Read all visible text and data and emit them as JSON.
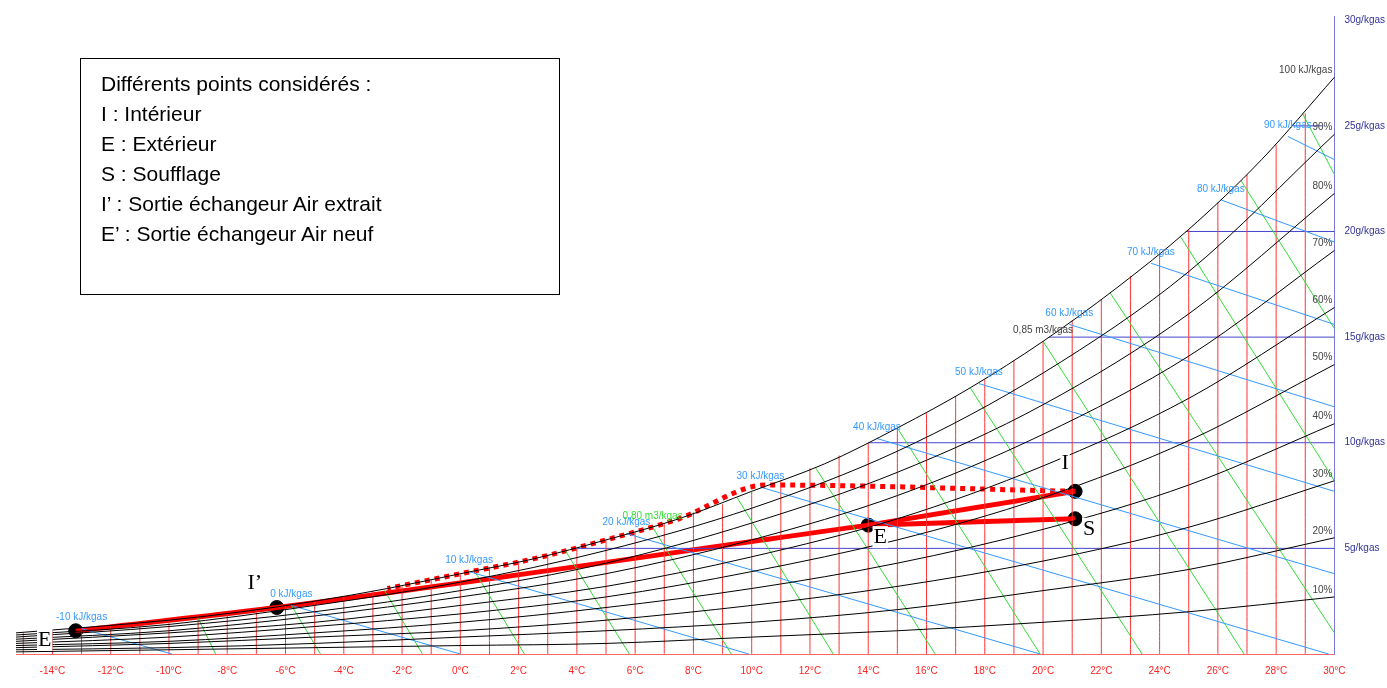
{
  "chart_data": {
    "type": "line",
    "legend": false,
    "marker": "none",
    "xlim": [
      -15.25,
      30
    ],
    "ylim": [
      0,
      30.2
    ],
    "xticks": [
      {
        "value": -14,
        "label": "-14°C"
      },
      {
        "value": -12,
        "label": "-12°C"
      },
      {
        "value": -10,
        "label": "-10°C"
      },
      {
        "value": -8,
        "label": "-8°C"
      },
      {
        "value": -6,
        "label": "-6°C"
      },
      {
        "value": -4,
        "label": "-4°C"
      },
      {
        "value": -2,
        "label": "-2°C"
      },
      {
        "value": 0,
        "label": "0°C"
      },
      {
        "value": 2,
        "label": "2°C"
      },
      {
        "value": 4,
        "label": "4°C"
      },
      {
        "value": 6,
        "label": "6°C"
      },
      {
        "value": 8,
        "label": "8°C"
      },
      {
        "value": 10,
        "label": "10°C"
      },
      {
        "value": 12,
        "label": "12°C"
      },
      {
        "value": 14,
        "label": "14°C"
      },
      {
        "value": 16,
        "label": "16°C"
      },
      {
        "value": 18,
        "label": "18°C"
      },
      {
        "value": 20,
        "label": "20°C"
      },
      {
        "value": 22,
        "label": "22°C"
      },
      {
        "value": 24,
        "label": "24°C"
      },
      {
        "value": 26,
        "label": "26°C"
      },
      {
        "value": 28,
        "label": "28°C"
      },
      {
        "value": 30,
        "label": "30°C"
      }
    ],
    "yticks": [
      {
        "value": 5,
        "label": "5g/kgas"
      },
      {
        "value": 10,
        "label": "10g/kgas"
      },
      {
        "value": 15,
        "label": "15g/kgas"
      },
      {
        "value": 20,
        "label": "20g/kgas"
      },
      {
        "value": 25,
        "label": "25g/kgas"
      },
      {
        "value": 30,
        "label": "30g/kgas"
      }
    ],
    "x": [
      -15.25,
      -10,
      -5,
      0,
      5,
      10,
      15,
      20,
      25,
      30
    ],
    "annotations": [
      "Différents points considérés :",
      "I : Intérieur",
      "E : Extérieur",
      "S : Soufflage",
      "I’ : Sortie échangeur Air extrait",
      "E’ : Sortie échangeur Air neuf",
      {
        "text": "E",
        "x": -13.2,
        "y": 1.1
      },
      {
        "text": "I’",
        "x": -6.3,
        "y": 2.2
      },
      {
        "text": "E",
        "x": 14.0,
        "y": 6.1
      },
      {
        "text": "I",
        "x": 21.1,
        "y": 7.7
      },
      {
        "text": "S",
        "x": 21.1,
        "y": 6.4
      },
      {
        "text": "-10 kJ/kgas",
        "x": -13,
        "y": 1.2
      },
      {
        "text": "0 kJ/kgas",
        "x": -5.8,
        "y": 2.3
      },
      {
        "text": "10 kJ/kgas",
        "x": 0.3,
        "y": 3.9
      },
      {
        "text": "20 kJ/kgas",
        "x": 5.7,
        "y": 5.7
      },
      {
        "text": "30 kJ/kgas",
        "x": 10.3,
        "y": 7.9
      },
      {
        "text": "40 kJ/kgas",
        "x": 14.3,
        "y": 10.2
      },
      {
        "text": "50 kJ/kgas",
        "x": 17.8,
        "y": 12.8
      },
      {
        "text": "60 kJ/kgas",
        "x": 20.9,
        "y": 15.6
      },
      {
        "text": "70 kJ/kgas",
        "x": 23.7,
        "y": 18.5
      },
      {
        "text": "80 kJ/kgas",
        "x": 26.1,
        "y": 21.5
      },
      {
        "text": "90 kJ/kgas",
        "x": 28.4,
        "y": 24.5
      },
      {
        "text": "100 kJ/kgas",
        "x": 30,
        "y": 27.3
      },
      {
        "text": "0,80 m3/kgas",
        "x": 6.6,
        "y": 6.0
      },
      {
        "text": "0,85 m3/kgas",
        "x": 20.0,
        "y": 14.8
      },
      {
        "text": "10%",
        "x": 30,
        "y": 2.7
      },
      {
        "text": "20%",
        "x": 30,
        "y": 5.5
      },
      {
        "text": "30%",
        "x": 30,
        "y": 8.2
      },
      {
        "text": "40%",
        "x": 30,
        "y": 10.9
      },
      {
        "text": "50%",
        "x": 30,
        "y": 13.7
      },
      {
        "text": "60%",
        "x": 30,
        "y": 16.4
      },
      {
        "text": "70%",
        "x": 30,
        "y": 19.1
      },
      {
        "text": "80%",
        "x": 30,
        "y": 21.8
      },
      {
        "text": "90%",
        "x": 30,
        "y": 24.6
      }
    ],
    "series": [
      {
        "color": "#000000",
        "x": [
          -15.25,
          -12.5,
          -10,
          -7.5,
          -5,
          -2.5,
          0,
          2.5,
          5,
          7.5,
          10,
          12.5,
          15,
          17.5,
          20,
          22.5,
          25,
          27.5,
          30
        ],
        "values": [
          1.0,
          1.3,
          1.6,
          2.0,
          2.5,
          3.1,
          3.8,
          4.5,
          5.4,
          6.4,
          7.7,
          9.0,
          10.7,
          12.6,
          14.8,
          17.3,
          20.1,
          23.4,
          27.3
        ]
      },
      {
        "color": "#000000",
        "values": [
          0.1,
          0.2,
          0.3,
          0.4,
          0.5,
          0.8,
          1.1,
          1.5,
          2.0,
          2.7
        ]
      },
      {
        "color": "#000000",
        "values": [
          0.2,
          0.3,
          0.5,
          0.8,
          1.1,
          1.5,
          2.1,
          3.0,
          4.0,
          5.5
        ]
      },
      {
        "color": "#000000",
        "values": [
          0.3,
          0.5,
          0.8,
          1.1,
          1.6,
          2.3,
          3.2,
          4.4,
          6.0,
          8.2
        ]
      },
      {
        "color": "#000000",
        "values": [
          0.4,
          0.6,
          1.0,
          1.5,
          2.2,
          3.1,
          4.3,
          5.9,
          8.0,
          10.9
        ]
      },
      {
        "color": "#000000",
        "values": [
          0.5,
          0.8,
          1.3,
          1.9,
          2.7,
          3.9,
          5.4,
          7.4,
          10.1,
          13.7
        ]
      },
      {
        "color": "#000000",
        "values": [
          0.6,
          1.0,
          1.5,
          2.3,
          3.2,
          4.6,
          6.4,
          8.9,
          12.1,
          16.4
        ]
      },
      {
        "color": "#000000",
        "values": [
          0.7,
          1.1,
          1.8,
          2.7,
          3.8,
          5.4,
          7.5,
          10.4,
          14.1,
          19.1
        ]
      },
      {
        "color": "#000000",
        "values": [
          0.8,
          1.3,
          2.0,
          3.0,
          4.3,
          6.2,
          8.6,
          11.8,
          16.1,
          21.8
        ]
      },
      {
        "color": "#000000",
        "values": [
          0.9,
          1.4,
          2.3,
          3.4,
          4.9,
          6.9,
          9.6,
          13.3,
          18.1,
          24.6
        ]
      },
      {
        "color": "#3399ff",
        "x": [
          -13,
          -9.9
        ],
        "values": [
          1.2,
          0
        ]
      },
      {
        "color": "#3399ff",
        "x": [
          -5.8,
          0
        ],
        "values": [
          2.3,
          0
        ]
      },
      {
        "color": "#3399ff",
        "x": [
          0.3,
          9.9
        ],
        "values": [
          3.9,
          0
        ]
      },
      {
        "color": "#3399ff",
        "x": [
          5.7,
          19.9
        ],
        "values": [
          5.7,
          0
        ]
      },
      {
        "color": "#3399ff",
        "x": [
          10.3,
          29.8
        ],
        "values": [
          7.9,
          0
        ]
      },
      {
        "color": "#3399ff",
        "x": [
          14.3,
          30
        ],
        "values": [
          10.2,
          3.8
        ]
      },
      {
        "color": "#3399ff",
        "x": [
          17.8,
          30
        ],
        "values": [
          12.8,
          7.7
        ]
      },
      {
        "color": "#3399ff",
        "x": [
          20.9,
          30
        ],
        "values": [
          15.6,
          11.7
        ]
      },
      {
        "color": "#3399ff",
        "x": [
          23.7,
          30
        ],
        "values": [
          18.5,
          15.6
        ]
      },
      {
        "color": "#3399ff",
        "x": [
          26.1,
          30
        ],
        "values": [
          21.5,
          19.5
        ]
      },
      {
        "color": "#3399ff",
        "x": [
          28.4,
          30
        ],
        "values": [
          24.5,
          23.4
        ]
      },
      {
        "color": "#33dd33",
        "x": [
          -9.0,
          -8.4
        ],
        "values": [
          1.7,
          0
        ]
      },
      {
        "color": "#33dd33",
        "x": [
          -5.8,
          -4.8
        ],
        "values": [
          2.3,
          0
        ]
      },
      {
        "color": "#33dd33",
        "x": [
          -2.6,
          -1.3
        ],
        "values": [
          3.0,
          0
        ]
      },
      {
        "color": "#33dd33",
        "x": [
          0.5,
          2.2
        ],
        "values": [
          3.9,
          0
        ]
      },
      {
        "color": "#33dd33",
        "x": [
          3.6,
          5.8
        ],
        "values": [
          4.9,
          0
        ]
      },
      {
        "color": "#33dd33",
        "x": [
          6.6,
          9.3
        ],
        "values": [
          6.0,
          0
        ]
      },
      {
        "color": "#33dd33",
        "x": [
          9.5,
          12.8
        ],
        "values": [
          7.4,
          0
        ]
      },
      {
        "color": "#33dd33",
        "x": [
          12.2,
          16.3
        ],
        "values": [
          8.8,
          0
        ]
      },
      {
        "color": "#33dd33",
        "x": [
          15.0,
          19.9
        ],
        "values": [
          10.7,
          0
        ]
      },
      {
        "color": "#33dd33",
        "x": [
          17.5,
          23.4
        ],
        "values": [
          12.6,
          0
        ]
      },
      {
        "color": "#33dd33",
        "x": [
          20.0,
          26.9
        ],
        "values": [
          14.8,
          0
        ]
      },
      {
        "color": "#33dd33",
        "x": [
          22.3,
          30
        ],
        "values": [
          17.1,
          1.0
        ]
      },
      {
        "color": "#33dd33",
        "x": [
          24.7,
          30
        ],
        "values": [
          19.8,
          8.2
        ]
      },
      {
        "color": "#33dd33",
        "x": [
          26.8,
          30
        ],
        "values": [
          22.4,
          15.4
        ]
      },
      {
        "color": "#33dd33",
        "x": [
          28.9,
          30
        ],
        "values": [
          25.6,
          22.7
        ]
      },
      {
        "color": "#ff3333",
        "x": [
          -15,
          -15
        ],
        "values": [
          0,
          1.0
        ]
      },
      {
        "color": "#ff3333",
        "x": [
          -14,
          -14
        ],
        "values": [
          0,
          1.1
        ]
      },
      {
        "color": "#ff3333",
        "x": [
          -13,
          -13
        ],
        "values": [
          0,
          1.2
        ]
      },
      {
        "color": "#ff3333",
        "x": [
          -12,
          -12
        ],
        "values": [
          0,
          1.3
        ]
      },
      {
        "color": "#ff3333",
        "x": [
          -11,
          -11
        ],
        "values": [
          0,
          1.5
        ]
      },
      {
        "color": "#ff3333",
        "x": [
          -10,
          -10
        ],
        "values": [
          0,
          1.6
        ]
      },
      {
        "color": "#ff3333",
        "x": [
          -9,
          -9
        ],
        "values": [
          0,
          1.8
        ]
      },
      {
        "color": "#ff3333",
        "x": [
          -8,
          -8
        ],
        "values": [
          0,
          1.9
        ]
      },
      {
        "color": "#ff3333",
        "x": [
          -7,
          -7
        ],
        "values": [
          0,
          2.1
        ]
      },
      {
        "color": "#ff3333",
        "x": [
          -6,
          -6
        ],
        "values": [
          0,
          2.3
        ]
      },
      {
        "color": "#ff3333",
        "x": [
          -5,
          -5
        ],
        "values": [
          0,
          2.5
        ]
      },
      {
        "color": "#ff3333",
        "x": [
          -4,
          -4
        ],
        "values": [
          0,
          2.7
        ]
      },
      {
        "color": "#ff3333",
        "x": [
          -3,
          -3
        ],
        "values": [
          0,
          3.0
        ]
      },
      {
        "color": "#ff3333",
        "x": [
          -2,
          -2
        ],
        "values": [
          0,
          3.2
        ]
      },
      {
        "color": "#ff3333",
        "x": [
          -1,
          -1
        ],
        "values": [
          0,
          3.5
        ]
      },
      {
        "color": "#ff3333",
        "x": [
          0,
          0
        ],
        "values": [
          0,
          3.8
        ]
      },
      {
        "color": "#ff3333",
        "x": [
          1,
          1
        ],
        "values": [
          0,
          4.1
        ]
      },
      {
        "color": "#ff3333",
        "x": [
          2,
          2
        ],
        "values": [
          0,
          4.4
        ]
      },
      {
        "color": "#ff3333",
        "x": [
          3,
          3
        ],
        "values": [
          0,
          4.7
        ]
      },
      {
        "color": "#ff3333",
        "x": [
          4,
          4
        ],
        "values": [
          0,
          5.0
        ]
      },
      {
        "color": "#ff3333",
        "x": [
          5,
          5
        ],
        "values": [
          0,
          5.4
        ]
      },
      {
        "color": "#ff3333",
        "x": [
          6,
          6
        ],
        "values": [
          0,
          5.8
        ]
      },
      {
        "color": "#ff3333",
        "x": [
          7,
          7
        ],
        "values": [
          0,
          6.2
        ]
      },
      {
        "color": "#ff3333",
        "x": [
          8,
          8
        ],
        "values": [
          0,
          6.7
        ]
      },
      {
        "color": "#ff3333",
        "x": [
          9,
          9
        ],
        "values": [
          0,
          7.1
        ]
      },
      {
        "color": "#ff3333",
        "x": [
          10,
          10
        ],
        "values": [
          0,
          7.7
        ]
      },
      {
        "color": "#ff3333",
        "x": [
          11,
          11
        ],
        "values": [
          0,
          8.2
        ]
      },
      {
        "color": "#ff3333",
        "x": [
          12,
          12
        ],
        "values": [
          0,
          8.8
        ]
      },
      {
        "color": "#ff3333",
        "x": [
          13,
          13
        ],
        "values": [
          0,
          9.4
        ]
      },
      {
        "color": "#ff3333",
        "x": [
          14,
          14
        ],
        "values": [
          0,
          10.0
        ]
      },
      {
        "color": "#ff3333",
        "x": [
          15,
          15
        ],
        "values": [
          0,
          10.7
        ]
      },
      {
        "color": "#ff3333",
        "x": [
          16,
          16
        ],
        "values": [
          0,
          11.4
        ]
      },
      {
        "color": "#ff3333",
        "x": [
          17,
          17
        ],
        "values": [
          0,
          12.2
        ]
      },
      {
        "color": "#ff3333",
        "x": [
          18,
          18
        ],
        "values": [
          0,
          13.0
        ]
      },
      {
        "color": "#ff3333",
        "x": [
          19,
          19
        ],
        "values": [
          0,
          13.9
        ]
      },
      {
        "color": "#ff3333",
        "x": [
          20,
          20
        ],
        "values": [
          0,
          14.8
        ]
      },
      {
        "color": "#ff3333",
        "x": [
          21,
          21
        ],
        "values": [
          0,
          15.8
        ]
      },
      {
        "color": "#ff3333",
        "x": [
          22,
          22
        ],
        "values": [
          0,
          16.8
        ]
      },
      {
        "color": "#ff3333",
        "x": [
          23,
          23
        ],
        "values": [
          0,
          17.9
        ]
      },
      {
        "color": "#ff3333",
        "x": [
          24,
          24
        ],
        "values": [
          0,
          19.0
        ]
      },
      {
        "color": "#ff3333",
        "x": [
          25,
          25
        ],
        "values": [
          0,
          20.1
        ]
      },
      {
        "color": "#ff3333",
        "x": [
          26,
          26
        ],
        "values": [
          0,
          21.4
        ]
      },
      {
        "color": "#ff3333",
        "x": [
          27,
          27
        ],
        "values": [
          0,
          22.7
        ]
      },
      {
        "color": "#ff3333",
        "x": [
          28,
          28
        ],
        "values": [
          0,
          24.1
        ]
      },
      {
        "color": "#ff3333",
        "x": [
          29,
          29
        ],
        "values": [
          0,
          25.6
        ]
      },
      {
        "color": "#4444cc",
        "x": [
          4.0,
          30
        ],
        "values": [
          5,
          5
        ]
      },
      {
        "color": "#4444cc",
        "x": [
          14.0,
          30
        ],
        "values": [
          10,
          10
        ]
      },
      {
        "color": "#4444cc",
        "x": [
          20.2,
          30
        ],
        "values": [
          15,
          15
        ]
      },
      {
        "color": "#4444cc",
        "x": [
          24.9,
          30
        ],
        "values": [
          20,
          20
        ]
      },
      {
        "color": "#4444cc",
        "x": [
          28.6,
          29.6
        ],
        "values": [
          25,
          25
        ]
      },
      {
        "color": "#ff0000",
        "x": [
          -13.2,
          -6.3,
          14.0
        ],
        "values": [
          1.1,
          2.2,
          6.1
        ]
      },
      {
        "color": "#ff0000",
        "x": [
          14.0,
          21.1
        ],
        "values": [
          6.1,
          7.7
        ]
      },
      {
        "color": "#ff0000",
        "x": [
          14.0,
          21.1
        ],
        "values": [
          6.1,
          6.4
        ]
      },
      {
        "color": "#ff0000",
        "line_style": "dotted",
        "x": [
          21.1,
          10.5,
          7.5,
          5,
          2.5,
          0,
          -2.5
        ],
        "values": [
          7.7,
          8.0,
          6.4,
          5.4,
          4.5,
          3.8,
          3.1
        ]
      },
      {
        "type": "scatter",
        "marker": "circle",
        "color": "#000000",
        "x": [
          -13.2,
          -6.3,
          14.0,
          21.1,
          21.1
        ],
        "values": [
          1.1,
          2.2,
          6.1,
          6.4,
          7.7
        ]
      }
    ]
  }
}
